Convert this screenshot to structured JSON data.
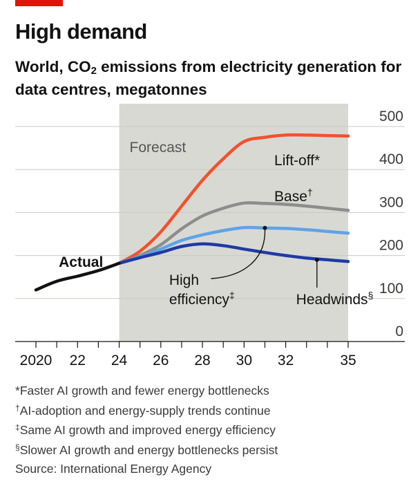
{
  "header": {
    "title": "High demand",
    "subtitle_before": "World, CO",
    "subtitle_sub": "2",
    "subtitle_after": " emissions from electricity generation for data centres, megatonnes"
  },
  "colors": {
    "accent_red": "#e3120b",
    "forecast_shade": "#d9d9d4",
    "actual": "#121212",
    "lift_off": "#f4512c",
    "base": "#8d8d8d",
    "high_efficiency": "#5fa3e6",
    "headwinds": "#1f3aa3"
  },
  "chart_data": {
    "type": "line",
    "title": "High demand",
    "subtitle": "World, CO2 emissions from electricity generation for data centres, megatonnes",
    "forecast_label": "Forecast",
    "forecast_range": [
      2024,
      2035
    ],
    "xlim": [
      2020,
      2035
    ],
    "ylim": [
      0,
      500
    ],
    "y_ticks": [
      0,
      100,
      200,
      300,
      400,
      500
    ],
    "y_tick_labels": [
      "0",
      "100",
      "200",
      "300",
      "400",
      "500"
    ],
    "x_ticks": [
      2020,
      2021,
      2022,
      2023,
      2024,
      2025,
      2026,
      2027,
      2028,
      2029,
      2030,
      2031,
      2032,
      2033,
      2034,
      2035
    ],
    "x_tick_labels": [
      {
        "x": 2020,
        "label": "2020"
      },
      {
        "x": 2022,
        "label": "22"
      },
      {
        "x": 2024,
        "label": "24"
      },
      {
        "x": 2026,
        "label": "26"
      },
      {
        "x": 2028,
        "label": "28"
      },
      {
        "x": 2030,
        "label": "30"
      },
      {
        "x": 2032,
        "label": "32"
      },
      {
        "x": 2035,
        "label": "35"
      }
    ],
    "series": [
      {
        "key": "actual",
        "name": "Actual",
        "mark": "",
        "color": "#121212",
        "x": [
          2020,
          2021,
          2022,
          2023,
          2024
        ],
        "values": [
          120,
          140,
          152,
          165,
          182
        ]
      },
      {
        "key": "lift_off",
        "name": "Lift-off",
        "mark": "*",
        "color": "#f4512c",
        "x": [
          2024,
          2025,
          2026,
          2027,
          2028,
          2029,
          2030,
          2031,
          2032,
          2033,
          2034,
          2035
        ],
        "values": [
          182,
          210,
          255,
          315,
          375,
          425,
          465,
          475,
          480,
          480,
          479,
          478
        ]
      },
      {
        "key": "base",
        "name": "Base",
        "mark": "†",
        "color": "#8d8d8d",
        "x": [
          2024,
          2025,
          2026,
          2027,
          2028,
          2029,
          2030,
          2031,
          2032,
          2033,
          2034,
          2035
        ],
        "values": [
          182,
          200,
          225,
          262,
          292,
          310,
          322,
          321,
          319,
          315,
          310,
          305
        ]
      },
      {
        "key": "high_efficiency",
        "name": "High efficiency",
        "mark": "‡",
        "color": "#5fa3e6",
        "x": [
          2024,
          2025,
          2026,
          2027,
          2028,
          2029,
          2030,
          2031,
          2032,
          2033,
          2034,
          2035
        ],
        "values": [
          182,
          197,
          215,
          235,
          248,
          258,
          265,
          264,
          263,
          260,
          256,
          252
        ]
      },
      {
        "key": "headwinds",
        "name": "Headwinds",
        "mark": "§",
        "color": "#1f3aa3",
        "x": [
          2024,
          2025,
          2026,
          2027,
          2028,
          2029,
          2030,
          2031,
          2032,
          2033,
          2034,
          2035
        ],
        "values": [
          182,
          195,
          207,
          221,
          227,
          223,
          215,
          207,
          200,
          194,
          190,
          186
        ]
      }
    ],
    "annotations": [
      {
        "series": "high_efficiency",
        "anchor": [
          2031,
          264
        ],
        "text_lines": [
          "High",
          "efficiency"
        ]
      },
      {
        "series": "headwinds",
        "anchor": [
          2033.5,
          190
        ],
        "text_lines": [
          "Headwinds"
        ]
      }
    ]
  },
  "footnotes": [
    {
      "mark": "*",
      "text": "Faster AI growth and fewer energy bottlenecks"
    },
    {
      "mark": "†",
      "text": "AI-adoption and energy-supply trends continue"
    },
    {
      "mark": "‡",
      "text": "Same AI growth and improved energy efficiency"
    },
    {
      "mark": "§",
      "text": "Slower AI growth and energy bottlenecks persist"
    }
  ],
  "source": "Source: International Energy Agency"
}
